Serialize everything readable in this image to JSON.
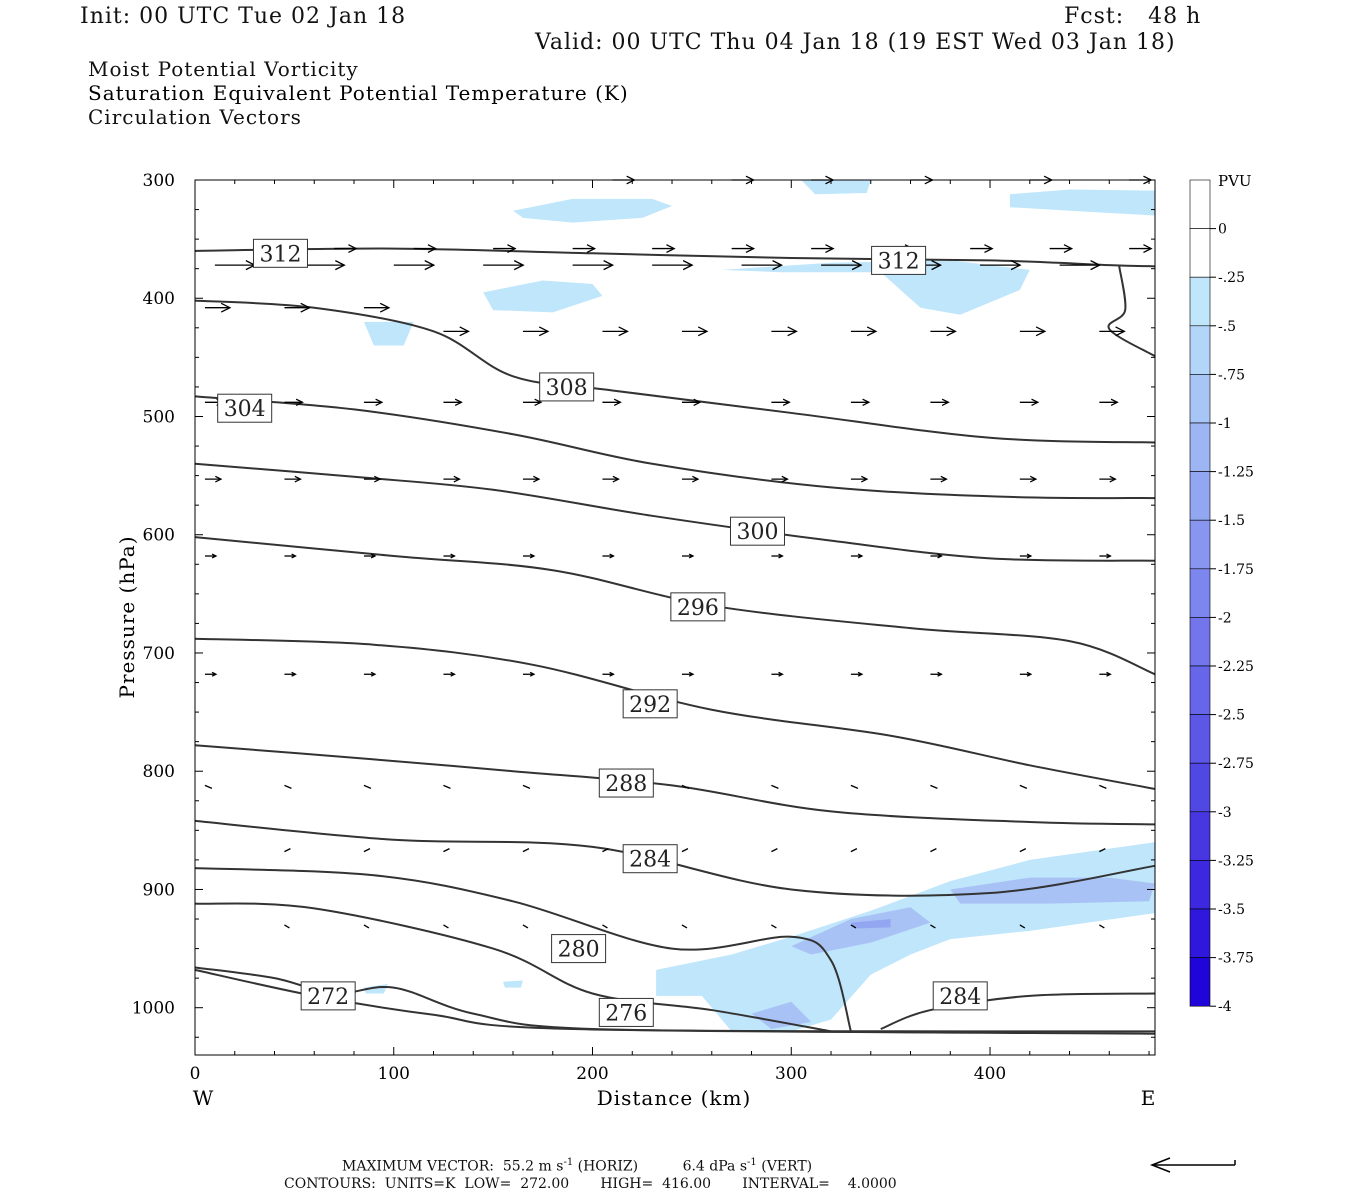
{
  "header": {
    "init": "Init: 00 UTC Tue 02 Jan 18",
    "fcst": "Fcst:   48 h",
    "valid": "Valid: 00 UTC Thu 04 Jan 18 (19 EST Wed 03 Jan 18)"
  },
  "fields": {
    "line1": "Moist Potential Vorticity",
    "line2": "Saturation Equivalent Potential Temperature (K)",
    "line3": "Circulation Vectors"
  },
  "colors": {
    "line2_text": "#8a8a8a",
    "contour": "#333333",
    "frame": "#000000"
  },
  "footer": {
    "max_vector_label": "MAXIMUM VECTOR:",
    "max_vector_horiz": "55.2 m s",
    "horiz_unit": "(HORIZ)",
    "max_vector_vert": "6.4 dPa s",
    "vert_unit": "(VERT)",
    "exp": "-1",
    "contours": "CONTOURS:  UNITS=K  LOW=  272.00       HIGH=  416.00       INTERVAL=    4.0000"
  },
  "chart_data": {
    "type": "cross-section",
    "xlabel": "Distance (km)",
    "ylabel": "Pressure (hPa)",
    "x_ticks": [
      0,
      100,
      200,
      300,
      400
    ],
    "y_ticks": [
      300,
      400,
      500,
      600,
      700,
      800,
      900,
      1000
    ],
    "xlim": [
      0,
      483
    ],
    "ylim": [
      300,
      1040
    ],
    "left_end_label": "W",
    "right_end_label": "E",
    "colorbar": {
      "title": "PVU",
      "labels": [
        "0",
        "-.25",
        "-.5",
        "-.75",
        "-1",
        "-1.25",
        "-1.5",
        "-1.75",
        "-2",
        "-2.25",
        "-2.5",
        "-2.75",
        "-3",
        "-3.25",
        "-3.5",
        "-3.75",
        "-4"
      ],
      "colors": [
        "#ffffff",
        "#ffffff",
        "#bfe6fb",
        "#b3d6f8",
        "#a8c6f5",
        "#9db5f3",
        "#93a6f1",
        "#8896ef",
        "#7d86ec",
        "#7276ea",
        "#6766e8",
        "#5c57e6",
        "#5147e3",
        "#4637e1",
        "#3b28df",
        "#2f18dc",
        "#1f05d9"
      ]
    },
    "isentrope_labels": [
      {
        "value": "312",
        "x": 43,
        "p": 362
      },
      {
        "value": "312",
        "x": 354,
        "p": 368
      },
      {
        "value": "308",
        "x": 187,
        "p": 475
      },
      {
        "value": "304",
        "x": 25,
        "p": 493
      },
      {
        "value": "300",
        "x": 283,
        "p": 597
      },
      {
        "value": "296",
        "x": 253,
        "p": 661
      },
      {
        "value": "292",
        "x": 229,
        "p": 743
      },
      {
        "value": "288",
        "x": 217,
        "p": 810
      },
      {
        "value": "284",
        "x": 229,
        "p": 874
      },
      {
        "value": "284",
        "x": 385,
        "p": 990
      },
      {
        "value": "280",
        "x": 193,
        "p": 950
      },
      {
        "value": "276",
        "x": 217,
        "p": 1004
      },
      {
        "value": "272",
        "x": 67,
        "p": 990
      }
    ],
    "isentropes": [
      [
        [
          0,
          360
        ],
        [
          100,
          358
        ],
        [
          200,
          362
        ],
        [
          300,
          366
        ],
        [
          400,
          368
        ],
        [
          460,
          372
        ],
        [
          483,
          373
        ]
      ],
      [
        [
          0,
          402
        ],
        [
          60,
          408
        ],
        [
          120,
          428
        ],
        [
          160,
          466
        ],
        [
          210,
          478
        ],
        [
          300,
          497
        ],
        [
          400,
          518
        ],
        [
          483,
          522
        ]
      ],
      [
        [
          0,
          483
        ],
        [
          80,
          494
        ],
        [
          160,
          515
        ],
        [
          230,
          540
        ],
        [
          320,
          560
        ],
        [
          410,
          568
        ],
        [
          483,
          569
        ]
      ],
      [
        [
          0,
          540
        ],
        [
          80,
          551
        ],
        [
          150,
          562
        ],
        [
          230,
          584
        ],
        [
          320,
          605
        ],
        [
          400,
          620
        ],
        [
          483,
          622
        ]
      ],
      [
        [
          0,
          602
        ],
        [
          100,
          618
        ],
        [
          180,
          630
        ],
        [
          260,
          660
        ],
        [
          360,
          679
        ],
        [
          440,
          690
        ],
        [
          483,
          718
        ]
      ],
      [
        [
          0,
          688
        ],
        [
          90,
          693
        ],
        [
          170,
          710
        ],
        [
          260,
          748
        ],
        [
          350,
          770
        ],
        [
          420,
          795
        ],
        [
          483,
          815
        ]
      ],
      [
        [
          0,
          778
        ],
        [
          90,
          790
        ],
        [
          160,
          800
        ],
        [
          240,
          812
        ],
        [
          320,
          834
        ],
        [
          420,
          843
        ],
        [
          483,
          845
        ]
      ],
      [
        [
          0,
          842
        ],
        [
          100,
          858
        ],
        [
          200,
          864
        ],
        [
          300,
          900
        ],
        [
          400,
          903
        ],
        [
          483,
          880
        ]
      ],
      [
        [
          0,
          882
        ],
        [
          90,
          888
        ],
        [
          160,
          910
        ],
        [
          240,
          950
        ],
        [
          300,
          940
        ],
        [
          320,
          960
        ],
        [
          330,
          1020
        ]
      ],
      [
        [
          0,
          912
        ],
        [
          60,
          916
        ],
        [
          150,
          950
        ],
        [
          200,
          988
        ],
        [
          260,
          1002
        ],
        [
          320,
          1020
        ]
      ],
      [
        [
          0,
          966
        ],
        [
          40,
          975
        ],
        [
          70,
          988
        ],
        [
          100,
          983
        ],
        [
          140,
          1005
        ],
        [
          200,
          1018
        ],
        [
          400,
          1020
        ],
        [
          483,
          1020
        ]
      ],
      [
        [
          0,
          968
        ],
        [
          60,
          990
        ],
        [
          120,
          1006
        ],
        [
          190,
          1018
        ],
        [
          483,
          1022
        ]
      ],
      [
        [
          345,
          1018
        ],
        [
          370,
          1002
        ],
        [
          420,
          990
        ],
        [
          483,
          988
        ]
      ],
      [
        [
          465,
          373
        ],
        [
          468,
          410
        ],
        [
          460,
          426
        ],
        [
          483,
          449
        ]
      ]
    ],
    "pv_patches": [
      {
        "level": 1,
        "pts": [
          [
            160,
            326
          ],
          [
            190,
            316
          ],
          [
            230,
            316
          ],
          [
            240,
            322
          ],
          [
            225,
            332
          ],
          [
            190,
            336
          ],
          [
            165,
            332
          ]
        ]
      },
      {
        "level": 1,
        "pts": [
          [
            305,
            300
          ],
          [
            340,
            300
          ],
          [
            338,
            311
          ],
          [
            312,
            312
          ]
        ]
      },
      {
        "level": 1,
        "pts": [
          [
            410,
            312
          ],
          [
            440,
            308
          ],
          [
            483,
            309
          ],
          [
            483,
            330
          ],
          [
            450,
            327
          ],
          [
            410,
            323
          ]
        ]
      },
      {
        "level": 1,
        "pts": [
          [
            145,
            395
          ],
          [
            175,
            385
          ],
          [
            200,
            388
          ],
          [
            205,
            398
          ],
          [
            180,
            412
          ],
          [
            150,
            410
          ]
        ]
      },
      {
        "level": 1,
        "pts": [
          [
            265,
            376
          ],
          [
            320,
            370
          ],
          [
            380,
            368
          ],
          [
            420,
            376
          ],
          [
            415,
            393
          ],
          [
            385,
            414
          ],
          [
            365,
            408
          ],
          [
            345,
            378
          ],
          [
            295,
            378
          ]
        ]
      },
      {
        "level": 1,
        "pts": [
          [
            85,
            420
          ],
          [
            110,
            420
          ],
          [
            105,
            440
          ],
          [
            90,
            440
          ]
        ]
      },
      {
        "level": 1,
        "pts": [
          [
            232,
            968
          ],
          [
            270,
            955
          ],
          [
            300,
            940
          ],
          [
            340,
            918
          ],
          [
            380,
            893
          ],
          [
            420,
            875
          ],
          [
            483,
            860
          ],
          [
            483,
            920
          ],
          [
            420,
            935
          ],
          [
            380,
            942
          ],
          [
            360,
            955
          ],
          [
            340,
            972
          ],
          [
            320,
            1010
          ],
          [
            300,
            1020
          ],
          [
            270,
            1020
          ],
          [
            255,
            990
          ],
          [
            232,
            990
          ]
        ]
      },
      {
        "level": 2,
        "pts": [
          [
            300,
            948
          ],
          [
            330,
            925
          ],
          [
            360,
            915
          ],
          [
            370,
            928
          ],
          [
            340,
            945
          ],
          [
            310,
            955
          ]
        ]
      },
      {
        "level": 2,
        "pts": [
          [
            380,
            900
          ],
          [
            420,
            890
          ],
          [
            460,
            890
          ],
          [
            483,
            895
          ],
          [
            480,
            910
          ],
          [
            430,
            912
          ],
          [
            385,
            912
          ]
        ]
      },
      {
        "level": 2,
        "pts": [
          [
            280,
            1005
          ],
          [
            300,
            995
          ],
          [
            310,
            1012
          ],
          [
            290,
            1018
          ]
        ]
      },
      {
        "level": 3,
        "pts": [
          [
            330,
            928
          ],
          [
            350,
            925
          ],
          [
            350,
            932
          ],
          [
            332,
            933
          ]
        ]
      },
      {
        "level": 1,
        "pts": [
          [
            155,
            978
          ],
          [
            165,
            977
          ],
          [
            164,
            983
          ],
          [
            156,
            983
          ]
        ]
      },
      {
        "level": 1,
        "pts": [
          [
            85,
            983
          ],
          [
            97,
            980
          ],
          [
            95,
            988
          ],
          [
            86,
            988
          ]
        ]
      }
    ],
    "vectors": [
      {
        "p": 300,
        "len": 22,
        "dy": 0,
        "xs": [
          210,
          270,
          310,
          360,
          420,
          470
        ]
      },
      {
        "p": 358,
        "len": 22,
        "dy": 0,
        "xs": [
          30,
          70,
          110,
          150,
          190,
          230,
          270,
          310,
          350,
          390,
          430,
          470
        ]
      },
      {
        "p": 372,
        "len": 40,
        "dy": 0,
        "xs": [
          10,
          55,
          100,
          145,
          190,
          230,
          275,
          315,
          355,
          395,
          435
        ]
      },
      {
        "p": 408,
        "len": 25,
        "dy": 0,
        "xs": [
          5,
          45,
          85
        ]
      },
      {
        "p": 428,
        "len": 25,
        "dy": 0,
        "xs": [
          125,
          165,
          205,
          245,
          290,
          330,
          370,
          415,
          455
        ]
      },
      {
        "p": 488,
        "len": 18,
        "dy": 0,
        "xs": [
          5,
          45,
          85,
          125,
          165,
          205,
          245,
          290,
          330,
          370,
          415,
          455
        ]
      },
      {
        "p": 553,
        "len": 16,
        "dy": 0,
        "xs": [
          5,
          45,
          85,
          125,
          165,
          205,
          245,
          290,
          330,
          370,
          415,
          455
        ]
      },
      {
        "p": 618,
        "len": 11,
        "dy": 0,
        "xs": [
          5,
          45,
          85,
          125,
          165,
          205,
          245,
          290,
          330,
          370,
          415,
          455
        ]
      },
      {
        "p": 718,
        "len": 11,
        "dy": 0,
        "xs": [
          5,
          45,
          85,
          125,
          165,
          205,
          245,
          290,
          330,
          370,
          415,
          455
        ]
      },
      {
        "p": 812,
        "len": 7,
        "dy": 3,
        "xs": [
          5,
          45,
          85,
          125,
          165,
          205,
          245,
          290,
          330,
          370,
          415,
          455
        ]
      },
      {
        "p": 868,
        "len": 6,
        "dy": -3,
        "xs": [
          45,
          85,
          125,
          165,
          205,
          245,
          290,
          330,
          370,
          415,
          455
        ]
      },
      {
        "p": 930,
        "len": 5,
        "dy": 3,
        "xs": [
          45,
          85,
          125,
          165,
          205,
          245,
          290,
          330,
          370,
          415,
          455
        ]
      }
    ]
  }
}
